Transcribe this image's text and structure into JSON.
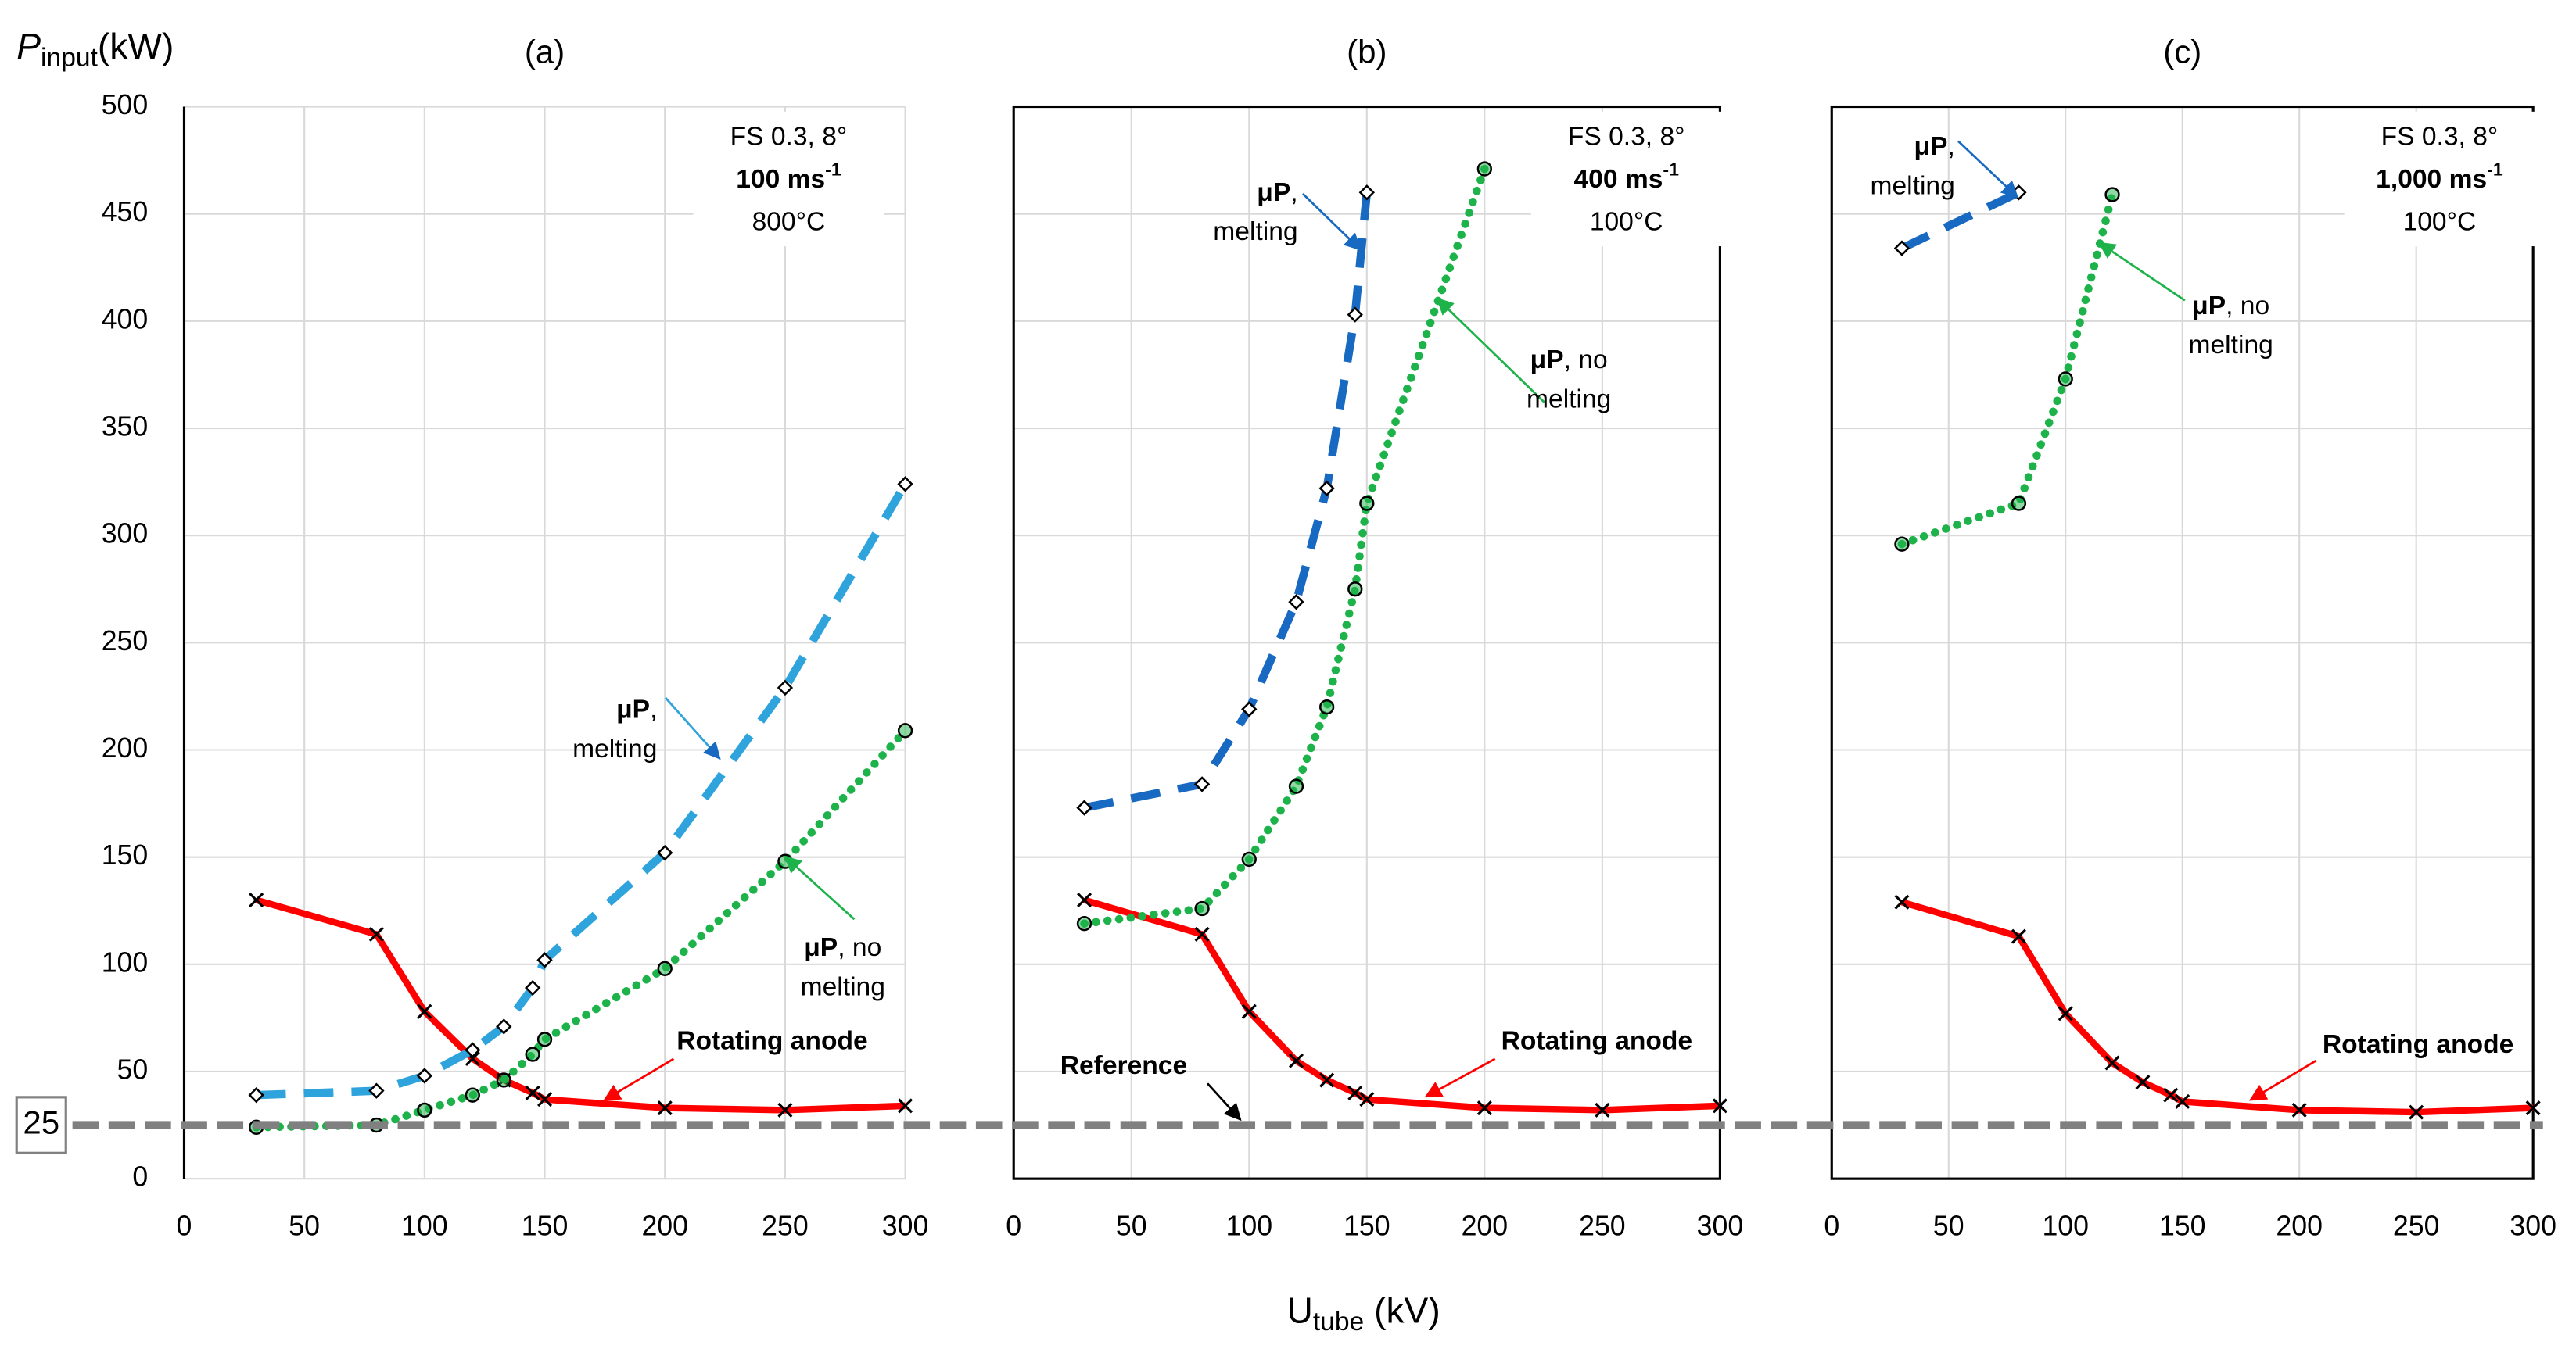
{
  "chart_data": [
    {
      "type": "line",
      "title": "(a)",
      "y_title": {
        "main": "P",
        "sub": "input",
        "unit": "(kW)"
      },
      "x_title": {
        "main": "U",
        "sub": "tube",
        "unit": " (kV)"
      },
      "reference": 25,
      "xlim": [
        0,
        300
      ],
      "xticks": [
        0,
        50,
        100,
        150,
        200,
        250,
        300
      ],
      "ylim": [
        0,
        500
      ],
      "yticks": [
        0,
        50,
        100,
        150,
        200,
        250,
        300,
        350,
        400,
        450,
        500
      ],
      "grid": true,
      "info": [
        "FS 0.3, 8°",
        {
          "text": "100 ms",
          "sup": "-1"
        },
        "800°C"
      ],
      "series": [
        {
          "name": "Rotating anode",
          "color": "#ff0000",
          "marker": "x",
          "style": "solid",
          "x": [
            30,
            80,
            100,
            120,
            133,
            145,
            150,
            200,
            250,
            300
          ],
          "values": [
            130,
            114,
            78,
            56,
            46,
            40,
            37,
            33,
            32,
            34
          ]
        },
        {
          "name": {
            "bold": "μP",
            "text": ",",
            "text2": "melting"
          },
          "color": "#2ea3dc",
          "marker": "diamond",
          "style": "dashed",
          "x": [
            30,
            80,
            100,
            120,
            133,
            145,
            150,
            200,
            250,
            300
          ],
          "values": [
            39,
            41,
            48,
            60,
            71,
            89,
            102,
            152,
            229,
            324
          ]
        },
        {
          "name": {
            "bold": "μP",
            "text": ", no",
            "text2": "melting"
          },
          "color": "#1db34a",
          "marker": "circle",
          "style": "dotted",
          "x": [
            30,
            80,
            100,
            120,
            133,
            145,
            150,
            200,
            250,
            300
          ],
          "values": [
            24,
            25,
            32,
            39,
            46,
            58,
            65,
            98,
            148,
            209
          ]
        }
      ]
    },
    {
      "type": "line",
      "title": "(b)",
      "reference_label": "Reference",
      "xlim": [
        0,
        300
      ],
      "xticks": [
        0,
        50,
        100,
        150,
        200,
        250,
        300
      ],
      "ylim": [
        0,
        500
      ],
      "yticks": [
        0,
        50,
        100,
        150,
        200,
        250,
        300,
        350,
        400,
        450,
        500
      ],
      "grid": true,
      "info": [
        "FS 0.3, 8°",
        {
          "text": "400 ms",
          "sup": "-1"
        },
        "100°C"
      ],
      "series": [
        {
          "name": "Rotating anode",
          "color": "#ff0000",
          "marker": "x",
          "style": "solid",
          "x": [
            30,
            80,
            100,
            120,
            133,
            145,
            150,
            200,
            250,
            300
          ],
          "values": [
            130,
            114,
            78,
            55,
            46,
            40,
            37,
            33,
            32,
            34
          ]
        },
        {
          "name": {
            "bold": "μP",
            "text": ",",
            "text2": "melting"
          },
          "color": "#1769c1",
          "marker": "diamond",
          "style": "dashed",
          "x": [
            30,
            80,
            100,
            120,
            133,
            145,
            150
          ],
          "values": [
            173,
            184,
            219,
            269,
            322,
            403,
            460
          ]
        },
        {
          "name": {
            "bold": "μP",
            "text": ", no",
            "text2": "melting"
          },
          "color": "#1db34a",
          "marker": "circle",
          "style": "dotted",
          "x": [
            30,
            80,
            100,
            120,
            133,
            145,
            150,
            200
          ],
          "values": [
            119,
            126,
            149,
            183,
            220,
            275,
            315,
            471
          ]
        }
      ]
    },
    {
      "type": "line",
      "title": "(c)",
      "xlim": [
        0,
        300
      ],
      "xticks": [
        0,
        50,
        100,
        150,
        200,
        250,
        300
      ],
      "ylim": [
        0,
        500
      ],
      "yticks": [
        0,
        50,
        100,
        150,
        200,
        250,
        300,
        350,
        400,
        450,
        500
      ],
      "grid": true,
      "info": [
        "FS 0.3, 8°",
        {
          "text": "1,000 ms",
          "sup": "-1"
        },
        "100°C"
      ],
      "series": [
        {
          "name": "Rotating anode",
          "color": "#ff0000",
          "marker": "x",
          "style": "solid",
          "x": [
            30,
            80,
            100,
            120,
            133,
            145,
            150,
            200,
            250,
            300
          ],
          "values": [
            129,
            113,
            77,
            54,
            45,
            39,
            36,
            32,
            31,
            33
          ]
        },
        {
          "name": {
            "bold": "μP",
            "text": ",",
            "text2": "melting"
          },
          "color": "#1769c1",
          "marker": "diamond",
          "style": "dashed",
          "x": [
            30,
            80
          ],
          "values": [
            434,
            460
          ]
        },
        {
          "name": {
            "bold": "μP",
            "text": ", no",
            "text2": "melting"
          },
          "color": "#1db34a",
          "marker": "circle",
          "style": "dotted",
          "x": [
            30,
            80,
            100,
            120
          ],
          "values": [
            296,
            315,
            373,
            459
          ]
        }
      ]
    }
  ]
}
